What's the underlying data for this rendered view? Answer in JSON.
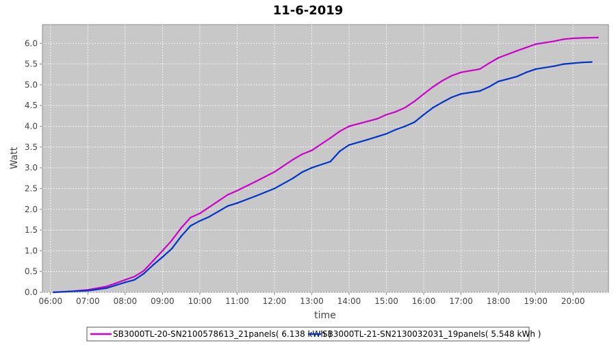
{
  "chart_data": {
    "type": "line",
    "title": "11-6-2019",
    "xlabel": "time",
    "ylabel": "Watt",
    "xlim": [
      "05:47",
      "20:57"
    ],
    "ylim": [
      0,
      6.45
    ],
    "x_ticks": [
      "06:00",
      "07:00",
      "08:00",
      "09:00",
      "10:00",
      "11:00",
      "12:00",
      "13:00",
      "14:00",
      "15:00",
      "16:00",
      "17:00",
      "18:00",
      "19:00",
      "20:00"
    ],
    "y_ticks": [
      "0.0",
      "0.5",
      "1.0",
      "1.5",
      "2.0",
      "2.5",
      "3.0",
      "3.5",
      "4.0",
      "4.5",
      "5.0",
      "5.5",
      "6.0"
    ],
    "grid": true,
    "legend_position": "bottom",
    "series": [
      {
        "name": "SB3000TL-20-SN2100578613_21panels( 6.138 kWh )",
        "color": "#cc00cc",
        "x": [
          "06:05",
          "06:30",
          "07:00",
          "07:30",
          "07:45",
          "08:00",
          "08:15",
          "08:30",
          "08:45",
          "09:00",
          "09:15",
          "09:30",
          "09:45",
          "10:00",
          "10:15",
          "10:30",
          "10:45",
          "11:00",
          "11:30",
          "12:00",
          "12:30",
          "12:45",
          "13:00",
          "13:30",
          "13:45",
          "14:00",
          "14:30",
          "14:45",
          "15:00",
          "15:15",
          "15:30",
          "15:45",
          "16:00",
          "16:15",
          "16:30",
          "16:45",
          "17:00",
          "17:30",
          "17:45",
          "18:00",
          "18:30",
          "18:45",
          "19:00",
          "19:30",
          "19:45",
          "20:00",
          "20:15",
          "20:40"
        ],
        "y": [
          0.0,
          0.02,
          0.06,
          0.14,
          0.22,
          0.3,
          0.38,
          0.52,
          0.76,
          1.0,
          1.25,
          1.55,
          1.8,
          1.9,
          2.05,
          2.2,
          2.35,
          2.45,
          2.67,
          2.9,
          3.2,
          3.33,
          3.42,
          3.72,
          3.88,
          4.0,
          4.12,
          4.18,
          4.28,
          4.35,
          4.45,
          4.6,
          4.78,
          4.95,
          5.1,
          5.22,
          5.3,
          5.38,
          5.52,
          5.65,
          5.82,
          5.9,
          5.98,
          6.05,
          6.1,
          6.12,
          6.13,
          6.14
        ]
      },
      {
        "name": "SB3000TL-21-SN2130032031_19panels( 5.548 kWh )",
        "color": "#0033cc",
        "x": [
          "06:05",
          "06:30",
          "07:00",
          "07:30",
          "07:45",
          "08:00",
          "08:15",
          "08:30",
          "08:45",
          "09:00",
          "09:15",
          "09:30",
          "09:45",
          "10:00",
          "10:15",
          "10:30",
          "10:45",
          "11:00",
          "11:30",
          "12:00",
          "12:30",
          "12:45",
          "13:00",
          "13:30",
          "13:45",
          "14:00",
          "14:30",
          "14:45",
          "15:00",
          "15:15",
          "15:30",
          "15:45",
          "16:00",
          "16:15",
          "16:30",
          "16:45",
          "17:00",
          "17:30",
          "17:45",
          "18:00",
          "18:30",
          "18:45",
          "19:00",
          "19:30",
          "19:45",
          "20:00",
          "20:15",
          "20:30"
        ],
        "y": [
          0.0,
          0.02,
          0.04,
          0.1,
          0.17,
          0.24,
          0.3,
          0.45,
          0.66,
          0.85,
          1.05,
          1.35,
          1.6,
          1.72,
          1.82,
          1.95,
          2.08,
          2.15,
          2.32,
          2.5,
          2.75,
          2.9,
          3.0,
          3.15,
          3.4,
          3.55,
          3.68,
          3.75,
          3.82,
          3.92,
          4.0,
          4.1,
          4.28,
          4.45,
          4.58,
          4.7,
          4.78,
          4.85,
          4.95,
          5.08,
          5.2,
          5.3,
          5.38,
          5.45,
          5.5,
          5.52,
          5.54,
          5.55
        ]
      }
    ]
  }
}
